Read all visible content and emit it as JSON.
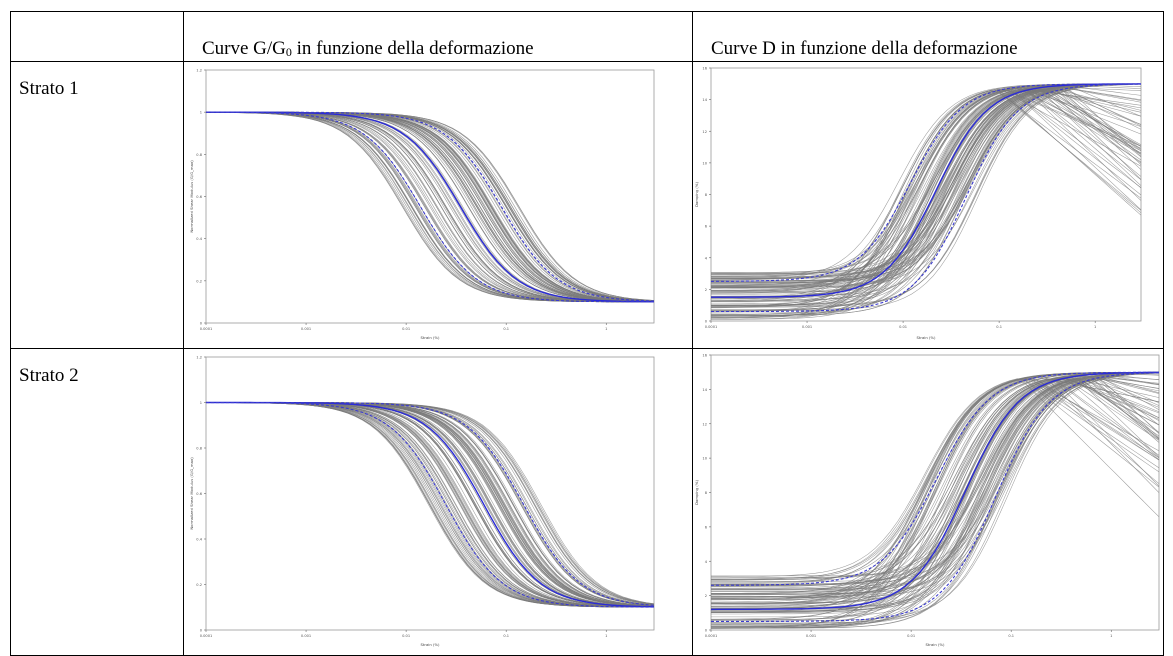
{
  "header": {
    "col_blank": "",
    "col_g_prefix": "Curve G/G",
    "col_g_sub": "0",
    "col_g_suffix": " in funzione della deformazione",
    "col_d": "Curve D in funzione della deformazione"
  },
  "rows": [
    {
      "label": "Strato 1"
    },
    {
      "label": "Strato 2"
    }
  ],
  "chart_data": [
    {
      "type": "line",
      "panel": "Strato 1 – G/G0",
      "xlabel": "Strain (%)",
      "ylabel": "Normalized Shear Modulus (G/G_max)",
      "xscale": "log",
      "xlim": [
        0.0001,
        3
      ],
      "ylim": [
        0,
        1.2
      ],
      "xticks": [
        "0.0001",
        "0.001",
        "0.01",
        "0.1",
        "1"
      ],
      "yticks": [
        "0",
        "0.2",
        "0.4",
        "0.6",
        "0.8",
        "1",
        "1.2"
      ],
      "curve_kind": "modulus",
      "x_mid": 0.03,
      "series": [
        {
          "name": "",
          "style": "median",
          "x50": 0.035
        },
        {
          "name": "",
          "style": "bound",
          "x50": 0.014
        },
        {
          "name": "",
          "style": "bound",
          "x50": 0.09
        }
      ]
    },
    {
      "type": "line",
      "panel": "Strato 1 – D",
      "xlabel": "Strain (%)",
      "ylabel": "Damping (%)",
      "xscale": "log",
      "xlim": [
        0.0001,
        3
      ],
      "ylim": [
        0,
        16
      ],
      "xticks": [
        "0.0001",
        "0.001",
        "0.01",
        "0.1",
        "1"
      ],
      "yticks": [
        "0",
        "2",
        "4",
        "6",
        "8",
        "10",
        "12",
        "14",
        "16"
      ],
      "curve_kind": "damping",
      "max_damping": 15,
      "series": [
        {
          "name": "",
          "style": "median",
          "x50": 0.022,
          "dmin": 1.5
        },
        {
          "name": "",
          "style": "bound",
          "x50": 0.012,
          "dmin": 2.5
        },
        {
          "name": "",
          "style": "bound",
          "x50": 0.045,
          "dmin": 0.6
        }
      ]
    },
    {
      "type": "line",
      "panel": "Strato 2 – G/G0",
      "xlabel": "Strain (%)",
      "ylabel": "Normalized Shear Modulus (G/G_max)",
      "xscale": "log",
      "xlim": [
        0.0001,
        3
      ],
      "ylim": [
        0,
        1.2
      ],
      "xticks": [
        "0.0001",
        "0.001",
        "0.01",
        "0.1",
        "1"
      ],
      "yticks": [
        "0",
        "0.2",
        "0.4",
        "0.6",
        "0.8",
        "1",
        "1.2"
      ],
      "curve_kind": "modulus",
      "series": [
        {
          "name": "",
          "style": "median",
          "x50": 0.06
        },
        {
          "name": "",
          "style": "bound",
          "x50": 0.025
        },
        {
          "name": "",
          "style": "bound",
          "x50": 0.15
        }
      ]
    },
    {
      "type": "line",
      "panel": "Strato 2 – D",
      "xlabel": "Strain (%)",
      "ylabel": "Damping (%)",
      "xscale": "log",
      "xlim": [
        0.0001,
        3
      ],
      "ylim": [
        0,
        16
      ],
      "xticks": [
        "0.0001",
        "0.001",
        "0.01",
        "0.1",
        "1"
      ],
      "yticks": [
        "0",
        "2",
        "4",
        "6",
        "8",
        "10",
        "12",
        "14",
        "16"
      ],
      "curve_kind": "damping",
      "max_damping": 15,
      "series": [
        {
          "name": "",
          "style": "median",
          "x50": 0.035,
          "dmin": 1.2
        },
        {
          "name": "",
          "style": "bound",
          "x50": 0.018,
          "dmin": 2.6
        },
        {
          "name": "",
          "style": "bound",
          "x50": 0.07,
          "dmin": 0.5
        }
      ]
    }
  ],
  "colors": {
    "realization": "#7a7a7a",
    "median": "#2b2bd6",
    "bound": "#3a3ad0",
    "highlight": "#3a8a3a",
    "frame": "#9a9a9a"
  }
}
